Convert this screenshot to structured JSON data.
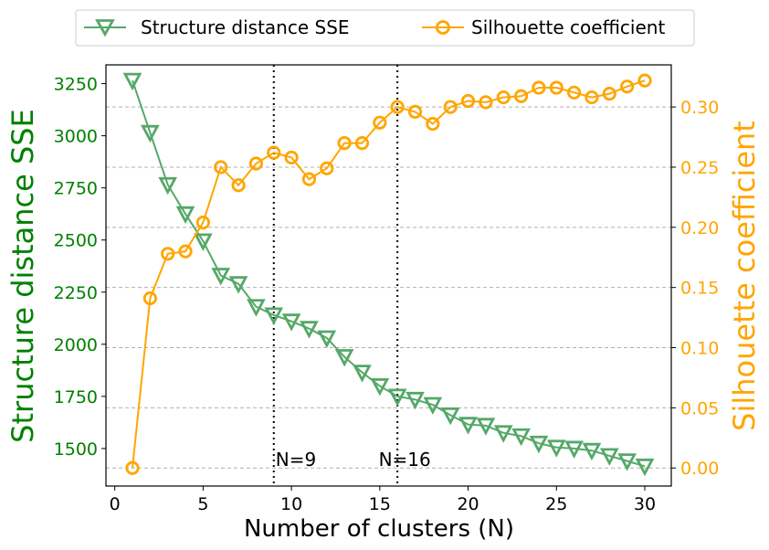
{
  "chart_data": {
    "type": "line",
    "xlabel": "Number of clusters (N)",
    "ylabel_left": "Structure distance SSE",
    "ylabel_right": "Silhouette coefficient",
    "xlim": [
      -0.5,
      31.5
    ],
    "ylim_left": [
      1320,
      3340
    ],
    "ylim_right": [
      -0.015,
      0.335
    ],
    "x_ticks": [
      0,
      5,
      10,
      15,
      20,
      25,
      30
    ],
    "y_left_ticks": [
      1500,
      1750,
      2000,
      2250,
      2500,
      2750,
      3000,
      3250
    ],
    "y_right_ticks": [
      0.0,
      0.05,
      0.1,
      0.15,
      0.2,
      0.25,
      0.3
    ],
    "y_right_tick_labels": [
      "0.00",
      "0.05",
      "0.10",
      "0.15",
      "0.20",
      "0.25",
      "0.30"
    ],
    "grid": "horizontal dashed (right axis ticks)",
    "legend_position": "top-center, outside plot",
    "x": [
      1,
      2,
      3,
      4,
      5,
      6,
      7,
      8,
      9,
      10,
      11,
      12,
      13,
      14,
      15,
      16,
      17,
      18,
      19,
      20,
      21,
      22,
      23,
      24,
      25,
      26,
      27,
      28,
      29,
      30
    ],
    "series": [
      {
        "name": "Structure distance SSE",
        "axis": "left",
        "color": "#55a868",
        "marker": "triangle-down",
        "values": [
          3265,
          3015,
          2765,
          2625,
          2495,
          2330,
          2290,
          2180,
          2140,
          2110,
          2075,
          2030,
          1940,
          1865,
          1800,
          1750,
          1735,
          1710,
          1660,
          1615,
          1610,
          1575,
          1560,
          1525,
          1505,
          1500,
          1490,
          1465,
          1440,
          1415
        ]
      },
      {
        "name": "Silhouette coefficient",
        "axis": "right",
        "color": "#ffa500",
        "marker": "circle",
        "values": [
          0.0,
          0.141,
          0.178,
          0.18,
          0.204,
          0.25,
          0.235,
          0.253,
          0.262,
          0.258,
          0.24,
          0.249,
          0.27,
          0.27,
          0.287,
          0.3,
          0.296,
          0.286,
          0.3,
          0.305,
          0.304,
          0.308,
          0.309,
          0.316,
          0.316,
          0.312,
          0.308,
          0.311,
          0.317,
          0.322
        ]
      }
    ],
    "vlines": [
      {
        "x": 9,
        "label": "N=9"
      },
      {
        "x": 16,
        "label": "N=16"
      }
    ]
  }
}
